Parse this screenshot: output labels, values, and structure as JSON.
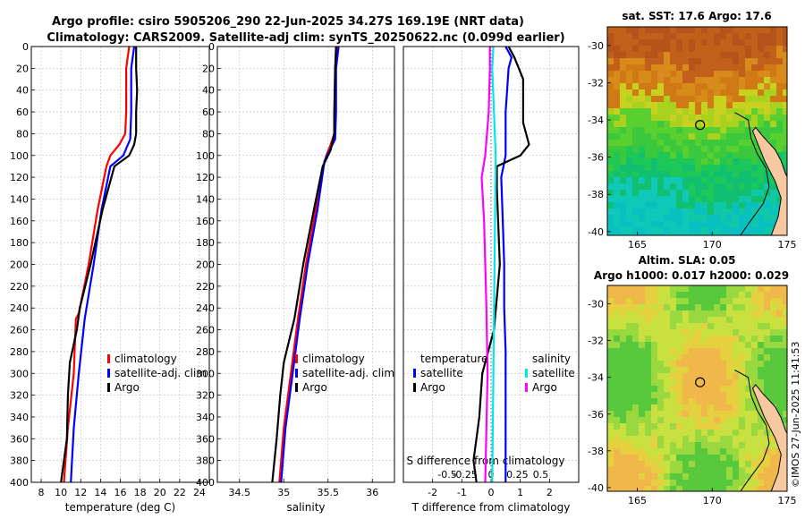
{
  "title": {
    "line1": "Argo profile: csiro 5905206_290 22-Jun-2025 34.27S 169.19E (NRT data)",
    "line2": "Climatology: CARS2009. Satellite-adj clim: synTS_20250622.nc (0.099d earlier)"
  },
  "colors": {
    "climatology": "#ff0000",
    "satellite": "#0000ff",
    "argo": "#000000",
    "sal_satellite": "#00e5ee",
    "sal_argo": "#ff00ff",
    "grid": "#bbbbbb"
  },
  "chart_data": [
    {
      "type": "line",
      "id": "temperature",
      "xlabel": "temperature (deg C)",
      "ylabel": "",
      "xlim": [
        7,
        25
      ],
      "ylim": [
        400,
        0
      ],
      "xticks": [
        8,
        10,
        12,
        14,
        16,
        18,
        20,
        22,
        24
      ],
      "yticks": [
        0,
        20,
        40,
        60,
        80,
        100,
        120,
        140,
        160,
        180,
        200,
        220,
        240,
        260,
        280,
        300,
        320,
        340,
        360,
        380,
        400
      ],
      "legend": [
        "climatology",
        "satellite-adj. clim",
        "Argo"
      ],
      "legend_position": "lower-right",
      "series": [
        {
          "name": "climatology",
          "color": "#ff0000",
          "depth": [
            0,
            20,
            60,
            80,
            90,
            100,
            110,
            150,
            200,
            245,
            250,
            300,
            350,
            400
          ],
          "values": [
            16.9,
            16.6,
            16.6,
            16.5,
            15.9,
            15.0,
            14.6,
            13.7,
            12.8,
            11.8,
            11.5,
            11.3,
            10.7,
            10.3
          ]
        },
        {
          "name": "satellite-adj. clim",
          "color": "#0000ff",
          "depth": [
            0,
            20,
            60,
            85,
            100,
            110,
            150,
            200,
            250,
            300,
            350,
            400
          ],
          "values": [
            17.4,
            17.1,
            17.1,
            17.0,
            16.3,
            15.0,
            14.1,
            13.3,
            12.4,
            11.8,
            11.3,
            11.0
          ]
        },
        {
          "name": "Argo",
          "color": "#000000",
          "depth": [
            0,
            20,
            40,
            60,
            80,
            90,
            100,
            110,
            150,
            200,
            240,
            260,
            290,
            320,
            360,
            400
          ],
          "values": [
            17.6,
            17.6,
            17.7,
            17.6,
            17.6,
            17.4,
            16.9,
            15.4,
            14.2,
            13.0,
            11.9,
            11.6,
            10.9,
            10.7,
            10.6,
            10.0
          ]
        }
      ]
    },
    {
      "type": "line",
      "id": "salinity",
      "xlabel": "salinity",
      "ylabel": "",
      "xlim": [
        34.25,
        36.25
      ],
      "ylim": [
        400,
        0
      ],
      "xticks": [
        34.5,
        35,
        35.5,
        36
      ],
      "xticklabels": [
        "34.5",
        "35",
        "35.5",
        "36"
      ],
      "yticks": [
        0,
        20,
        40,
        60,
        80,
        100,
        120,
        140,
        160,
        180,
        200,
        220,
        240,
        260,
        280,
        300,
        320,
        340,
        360,
        380,
        400
      ],
      "legend": [
        "climatology",
        "satellite-adj. clim",
        "Argo"
      ],
      "legend_position": "lower-right",
      "series": [
        {
          "name": "climatology",
          "color": "#ff0000",
          "depth": [
            0,
            20,
            60,
            80,
            90,
            100,
            110,
            150,
            200,
            250,
            300,
            350,
            400
          ],
          "values": [
            35.6,
            35.58,
            35.58,
            35.57,
            35.53,
            35.48,
            35.45,
            35.36,
            35.25,
            35.16,
            35.08,
            35.0,
            34.95
          ]
        },
        {
          "name": "satellite-adj. clim",
          "color": "#0000ff",
          "depth": [
            0,
            20,
            60,
            85,
            95,
            105,
            150,
            200,
            250,
            300,
            350,
            400
          ],
          "values": [
            35.62,
            35.59,
            35.59,
            35.58,
            35.52,
            35.46,
            35.38,
            35.27,
            35.18,
            35.1,
            35.02,
            34.97
          ]
        },
        {
          "name": "Argo",
          "color": "#000000",
          "depth": [
            0,
            20,
            60,
            80,
            95,
            110,
            150,
            200,
            250,
            290,
            320,
            360,
            400
          ],
          "values": [
            35.59,
            35.58,
            35.57,
            35.57,
            35.53,
            35.44,
            35.34,
            35.22,
            35.12,
            35.0,
            34.96,
            34.92,
            34.87
          ]
        }
      ]
    },
    {
      "type": "line",
      "id": "difference",
      "xlabel": "T difference from climatology",
      "top_label": "S difference from climatology",
      "xlim": [
        -3,
        3
      ],
      "ylim": [
        400,
        0
      ],
      "xticks": [
        -2,
        -1,
        0,
        1,
        2
      ],
      "xticklabels": [
        "-2",
        "-1",
        "0",
        "1",
        "2"
      ],
      "s_xticklabels": [
        "-0.5",
        "-0.25",
        "0",
        "0.25",
        "0.5"
      ],
      "yticks": [
        0,
        20,
        40,
        60,
        80,
        100,
        120,
        140,
        160,
        180,
        200,
        220,
        240,
        260,
        280,
        300,
        320,
        340,
        360,
        380,
        400
      ],
      "legend_temperature": {
        "title": "temperature",
        "entries": [
          "satellite",
          "Argo"
        ]
      },
      "legend_salinity": {
        "title": "salinity",
        "entries": [
          "satellite",
          "Argo"
        ]
      },
      "series": [
        {
          "name": "T satellite",
          "color": "#0000ff",
          "depth": [
            0,
            10,
            20,
            40,
            60,
            80,
            100,
            120,
            160,
            200,
            240,
            280,
            320,
            360,
            400
          ],
          "values": [
            0.5,
            0.7,
            0.6,
            0.55,
            0.5,
            0.5,
            0.5,
            0.35,
            0.4,
            0.45,
            0.45,
            0.5,
            0.5,
            0.5,
            0.5
          ]
        },
        {
          "name": "T Argo",
          "color": "#000000",
          "depth": [
            0,
            10,
            30,
            50,
            70,
            90,
            100,
            110,
            130,
            200,
            260,
            300,
            340,
            380,
            400
          ],
          "values": [
            0.6,
            0.8,
            1.1,
            1.1,
            1.1,
            1.3,
            1.0,
            0.2,
            0.2,
            0.3,
            0.1,
            -0.3,
            -0.4,
            -0.6,
            -0.5
          ]
        },
        {
          "name": "S satellite",
          "color": "#00e5ee",
          "depth": [
            0,
            20,
            100,
            200,
            300,
            400
          ],
          "values": [
            0.02,
            0.01,
            0.04,
            0.03,
            0.02,
            0.01
          ]
        },
        {
          "name": "S Argo",
          "color": "#ff00ff",
          "depth": [
            0,
            20,
            60,
            100,
            120,
            160,
            200,
            240,
            300,
            350,
            400
          ],
          "values": [
            -0.01,
            -0.01,
            -0.02,
            -0.05,
            -0.08,
            -0.06,
            -0.05,
            -0.04,
            -0.03,
            -0.04,
            -0.05
          ]
        }
      ]
    },
    {
      "type": "heatmap",
      "id": "sst_map",
      "title": "sat. SST: 17.6 Argo: 17.6",
      "xlim": [
        163,
        175
      ],
      "ylim": [
        -40.2,
        -29
      ],
      "xticks": [
        165,
        170,
        175
      ],
      "yticks": [
        -30,
        -32,
        -34,
        -36,
        -38,
        -40
      ],
      "marker": {
        "lon": 169.19,
        "lat": -34.27
      }
    },
    {
      "type": "heatmap",
      "id": "sla_map",
      "title_line1": "Altim. SLA: 0.05",
      "title_line2": "Argo h1000: 0.017 h2000: 0.029",
      "xlim": [
        163,
        175
      ],
      "ylim": [
        -40.2,
        -29
      ],
      "xticks": [
        165,
        170,
        175
      ],
      "yticks": [
        -30,
        -32,
        -34,
        -36,
        -38,
        -40
      ],
      "marker": {
        "lon": 169.19,
        "lat": -34.27
      }
    }
  ],
  "timestamp": "©IMOS 27-Jun-2025 11:41:53"
}
